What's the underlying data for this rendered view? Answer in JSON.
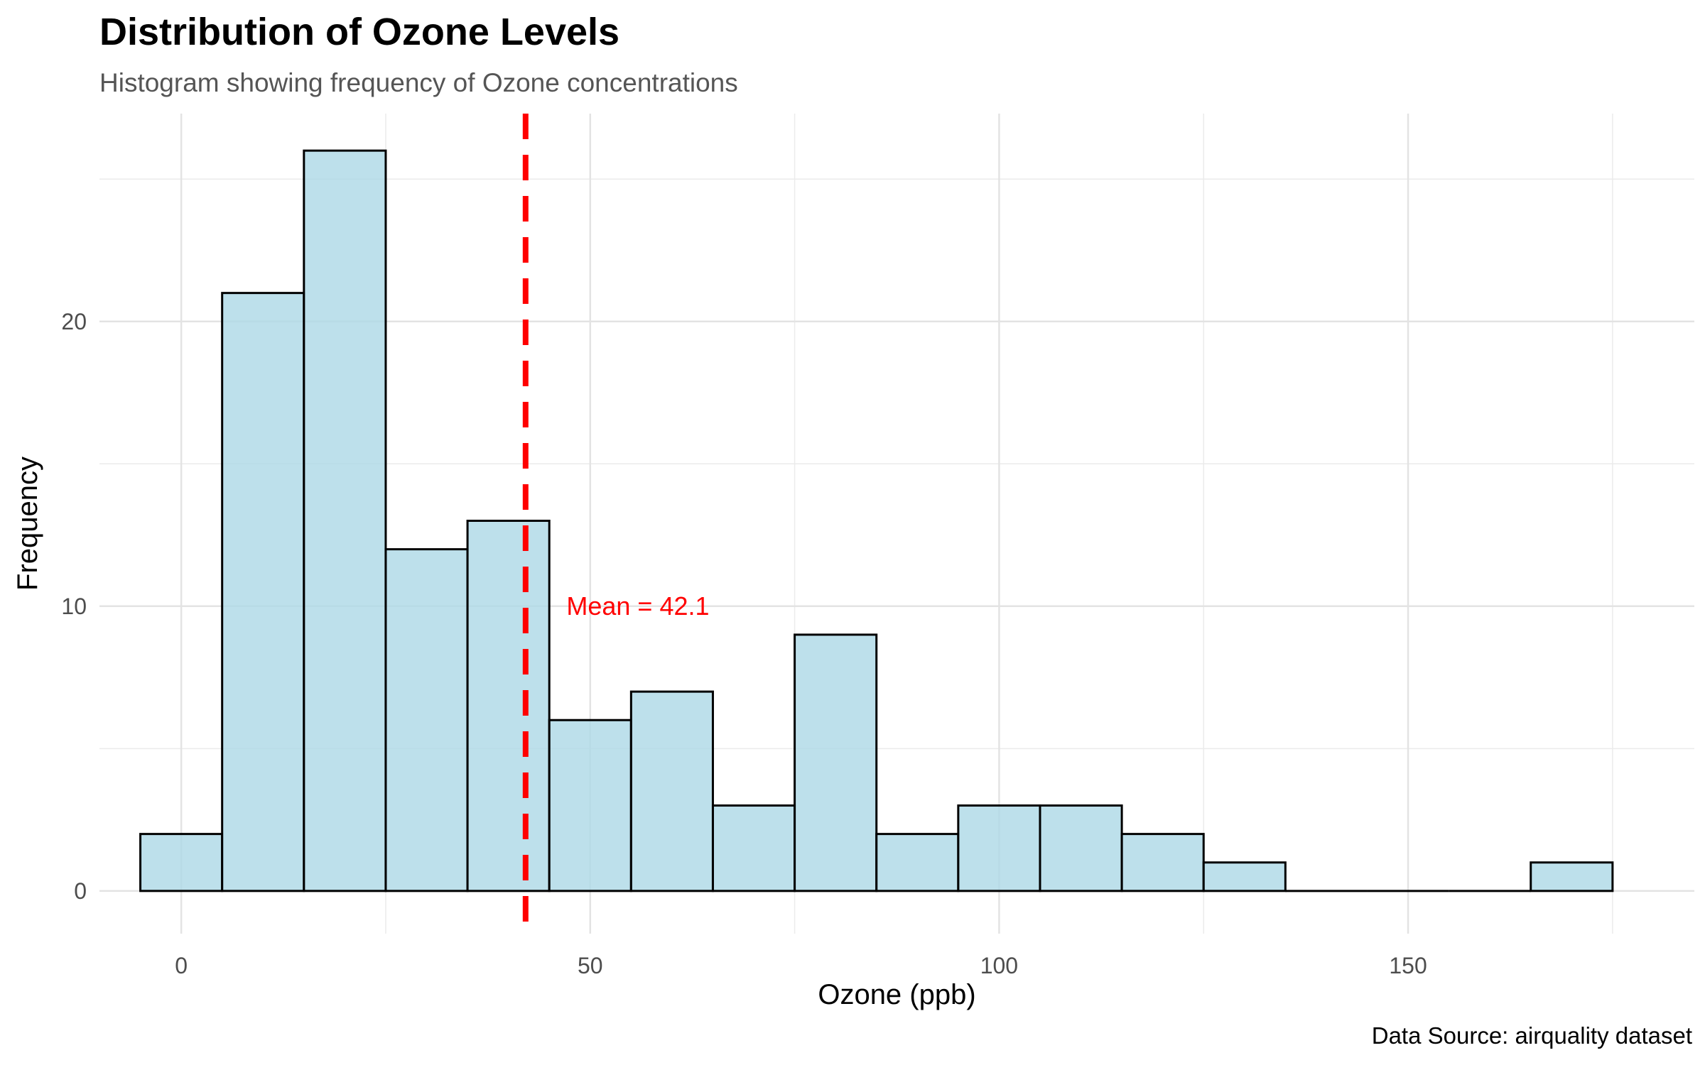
{
  "chart_data": {
    "type": "histogram",
    "title": "Distribution of Ozone Levels",
    "subtitle": "Histogram showing frequency of Ozone concentrations",
    "xlabel": "Ozone (ppb)",
    "ylabel": "Frequency",
    "caption": "Data Source: airquality dataset",
    "xlim": [
      -10,
      185
    ],
    "ylim": [
      -1.5,
      27.3
    ],
    "x_ticks": [
      0,
      50,
      100,
      150
    ],
    "y_ticks": [
      0,
      10,
      20
    ],
    "bin_width": 10,
    "bins": [
      {
        "x0": -5,
        "x1": 5,
        "count": 2
      },
      {
        "x0": 5,
        "x1": 15,
        "count": 21
      },
      {
        "x0": 15,
        "x1": 25,
        "count": 26
      },
      {
        "x0": 25,
        "x1": 35,
        "count": 12
      },
      {
        "x0": 35,
        "x1": 45,
        "count": 13
      },
      {
        "x0": 45,
        "x1": 55,
        "count": 6
      },
      {
        "x0": 55,
        "x1": 65,
        "count": 7
      },
      {
        "x0": 65,
        "x1": 75,
        "count": 3
      },
      {
        "x0": 75,
        "x1": 85,
        "count": 9
      },
      {
        "x0": 85,
        "x1": 95,
        "count": 2
      },
      {
        "x0": 95,
        "x1": 105,
        "count": 3
      },
      {
        "x0": 105,
        "x1": 115,
        "count": 3
      },
      {
        "x0": 115,
        "x1": 125,
        "count": 2
      },
      {
        "x0": 125,
        "x1": 135,
        "count": 1
      },
      {
        "x0": 135,
        "x1": 145,
        "count": 0
      },
      {
        "x0": 145,
        "x1": 155,
        "count": 0
      },
      {
        "x0": 155,
        "x1": 165,
        "count": 0
      },
      {
        "x0": 165,
        "x1": 175,
        "count": 1
      }
    ],
    "mean_line": {
      "value": 42.1,
      "label": "Mean = 42.1",
      "style": "dashed",
      "color": "#ff0000"
    },
    "bar_fill": "#add8e6",
    "bar_stroke": "#000000",
    "grid": true
  }
}
